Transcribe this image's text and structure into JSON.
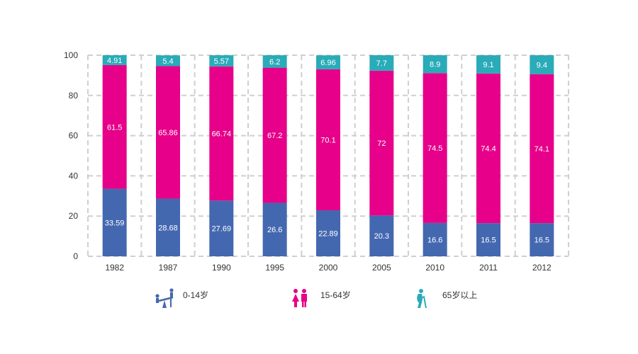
{
  "chart_data": {
    "type": "bar",
    "stacked": true,
    "categories": [
      "1982",
      "1987",
      "1990",
      "1995",
      "2000",
      "2005",
      "2010",
      "2011",
      "2012"
    ],
    "series": [
      {
        "name": "0-14岁",
        "color": "#4468b0",
        "icon": "children-seesaw-icon",
        "values": [
          33.59,
          28.68,
          27.69,
          26.6,
          22.89,
          20.3,
          16.6,
          16.5,
          16.5
        ]
      },
      {
        "name": "15-64岁",
        "color": "#e6008a",
        "icon": "adult-couple-icon",
        "values": [
          61.5,
          65.86,
          66.74,
          67.2,
          70.1,
          72,
          74.5,
          74.4,
          74.1
        ]
      },
      {
        "name": "65岁以上",
        "color": "#2aabb8",
        "icon": "elderly-person-icon",
        "values": [
          4.91,
          5.4,
          5.57,
          6.2,
          6.96,
          7.7,
          8.9,
          9.1,
          9.4
        ]
      }
    ],
    "data_labels": [
      [
        "33.59",
        "28.68",
        "27.69",
        "26.6",
        "22.89",
        "20.3",
        "16.6",
        "16.5",
        "16.5"
      ],
      [
        "61.5",
        "65.86",
        "66.74",
        "67.2",
        "70.1",
        "72",
        "74.5",
        "74.4",
        "74.1"
      ],
      [
        "4.91",
        "5.4",
        "5.57",
        "6.2",
        "6.96",
        "7.7",
        "8.9",
        "9.1",
        "9.4"
      ]
    ],
    "yticks": [
      "0",
      "20",
      "40",
      "60",
      "80",
      "100"
    ],
    "ylim": [
      0,
      100
    ],
    "grid": "dashed",
    "legend_position": "bottom"
  }
}
